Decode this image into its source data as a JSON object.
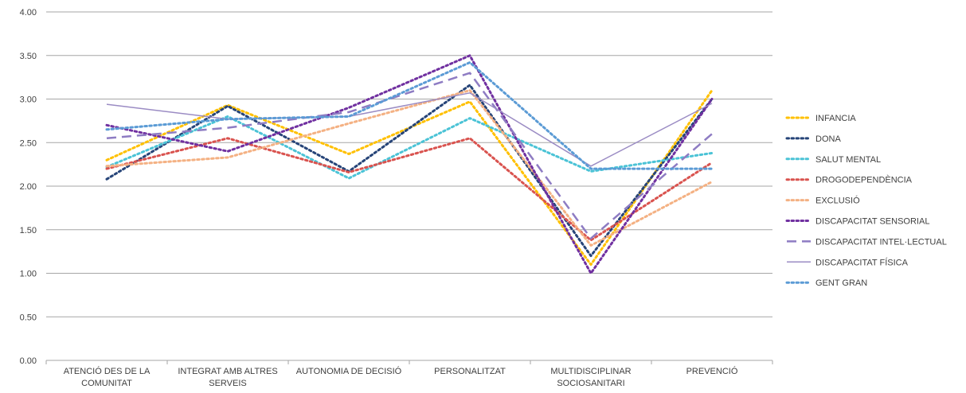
{
  "chart_data": {
    "type": "line",
    "title": "",
    "xlabel": "",
    "ylabel": "",
    "ylim": [
      0,
      4
    ],
    "yticks": [
      "0.00",
      "0.50",
      "1.00",
      "1.50",
      "2.00",
      "2.50",
      "3.00",
      "3.50",
      "4.00"
    ],
    "grid": true,
    "legend_position": "right",
    "categories": [
      [
        "ATENCIÓ DES DE LA",
        "COMUNITAT"
      ],
      [
        "INTEGRAT AMB ALTRES",
        "SERVEIS"
      ],
      [
        "AUTONOMIA DE DECISIÓ"
      ],
      [
        "PERSONALITZAT"
      ],
      [
        "MULTIDISCIPLINAR",
        "SOCIOSANITARI"
      ],
      [
        "PREVENCIÓ"
      ]
    ],
    "series": [
      {
        "name": "INFANCIA",
        "color": "#FFC000",
        "style": "dot",
        "values": [
          2.3,
          2.93,
          2.37,
          2.97,
          1.1,
          3.1
        ]
      },
      {
        "name": "DONA",
        "color": "#264478",
        "style": "dot",
        "values": [
          2.08,
          2.92,
          2.17,
          3.16,
          1.2,
          3.0
        ]
      },
      {
        "name": "SALUT MENTAL",
        "color": "#4BC3D6",
        "style": "dot",
        "values": [
          2.22,
          2.8,
          2.09,
          2.78,
          2.17,
          2.38
        ]
      },
      {
        "name": "DROGODEPENDÈNCIA",
        "color": "#D9534F",
        "style": "dot",
        "values": [
          2.2,
          2.55,
          2.16,
          2.55,
          1.38,
          2.27
        ]
      },
      {
        "name": "EXCLUSIÓ",
        "color": "#F4B183",
        "style": "dot",
        "values": [
          2.23,
          2.33,
          2.72,
          3.1,
          1.32,
          2.05
        ]
      },
      {
        "name": "DISCAPACITAT SENSORIAL",
        "color": "#7030A0",
        "style": "dot",
        "values": [
          2.7,
          2.4,
          2.9,
          3.5,
          1.0,
          3.0
        ]
      },
      {
        "name": "DISCAPACITAT INTEL·LECTUAL",
        "color": "#8E7CC3",
        "style": "dash",
        "values": [
          2.55,
          2.67,
          2.85,
          3.3,
          1.4,
          2.6
        ]
      },
      {
        "name": "DISCAPACITAT FÍSICA",
        "color": "#9B8CC4",
        "style": "solid",
        "values": [
          2.94,
          2.77,
          2.8,
          3.07,
          2.23,
          2.95
        ]
      },
      {
        "name": "GENT GRAN",
        "color": "#5B9BD5",
        "style": "dot",
        "values": [
          2.65,
          2.77,
          2.8,
          3.42,
          2.2,
          2.2
        ]
      }
    ]
  }
}
